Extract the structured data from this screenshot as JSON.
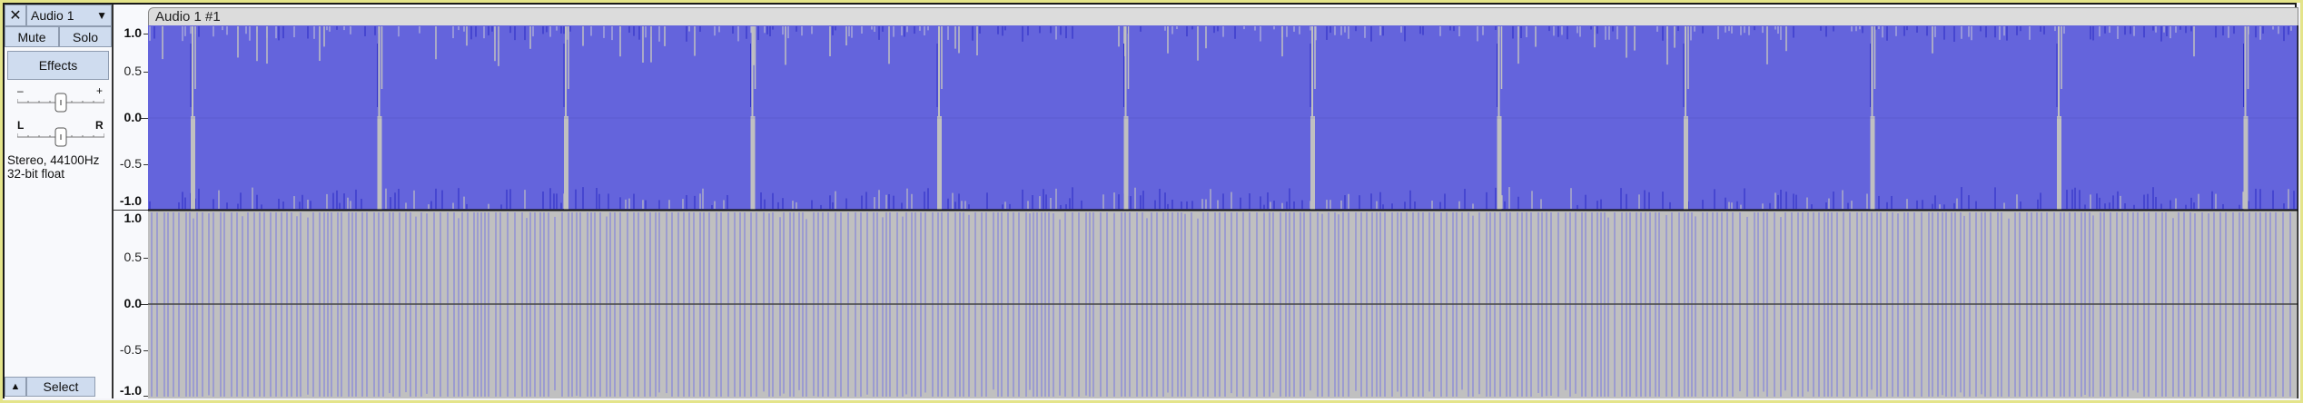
{
  "track": {
    "name": "Audio 1",
    "clip_title": "Audio 1 #1",
    "mute_label": "Mute",
    "solo_label": "Solo",
    "effects_label": "Effects",
    "select_label": "Select",
    "gain_min": "–",
    "gain_max": "+",
    "pan_left": "L",
    "pan_right": "R",
    "gain_value": 0.5,
    "pan_value": 0.5,
    "info_line1": "Stereo, 44100Hz",
    "info_line2": "32-bit float",
    "icons": {
      "close": "close-icon",
      "menu": "dropdown-arrow-icon",
      "collapse": "collapse-arrow-icon"
    }
  },
  "ruler": {
    "channel1": [
      "1.0",
      "0.5",
      "0.0",
      "-0.5",
      "-1.0"
    ],
    "channel2": [
      "1.0",
      "0.5",
      "0.0",
      "-0.5",
      "-1.0"
    ]
  },
  "colors": {
    "waveform": "#6464dc",
    "waveform_dark": "#3232c8",
    "background": "#c0c0c0",
    "frame": "#e4e48a"
  }
}
